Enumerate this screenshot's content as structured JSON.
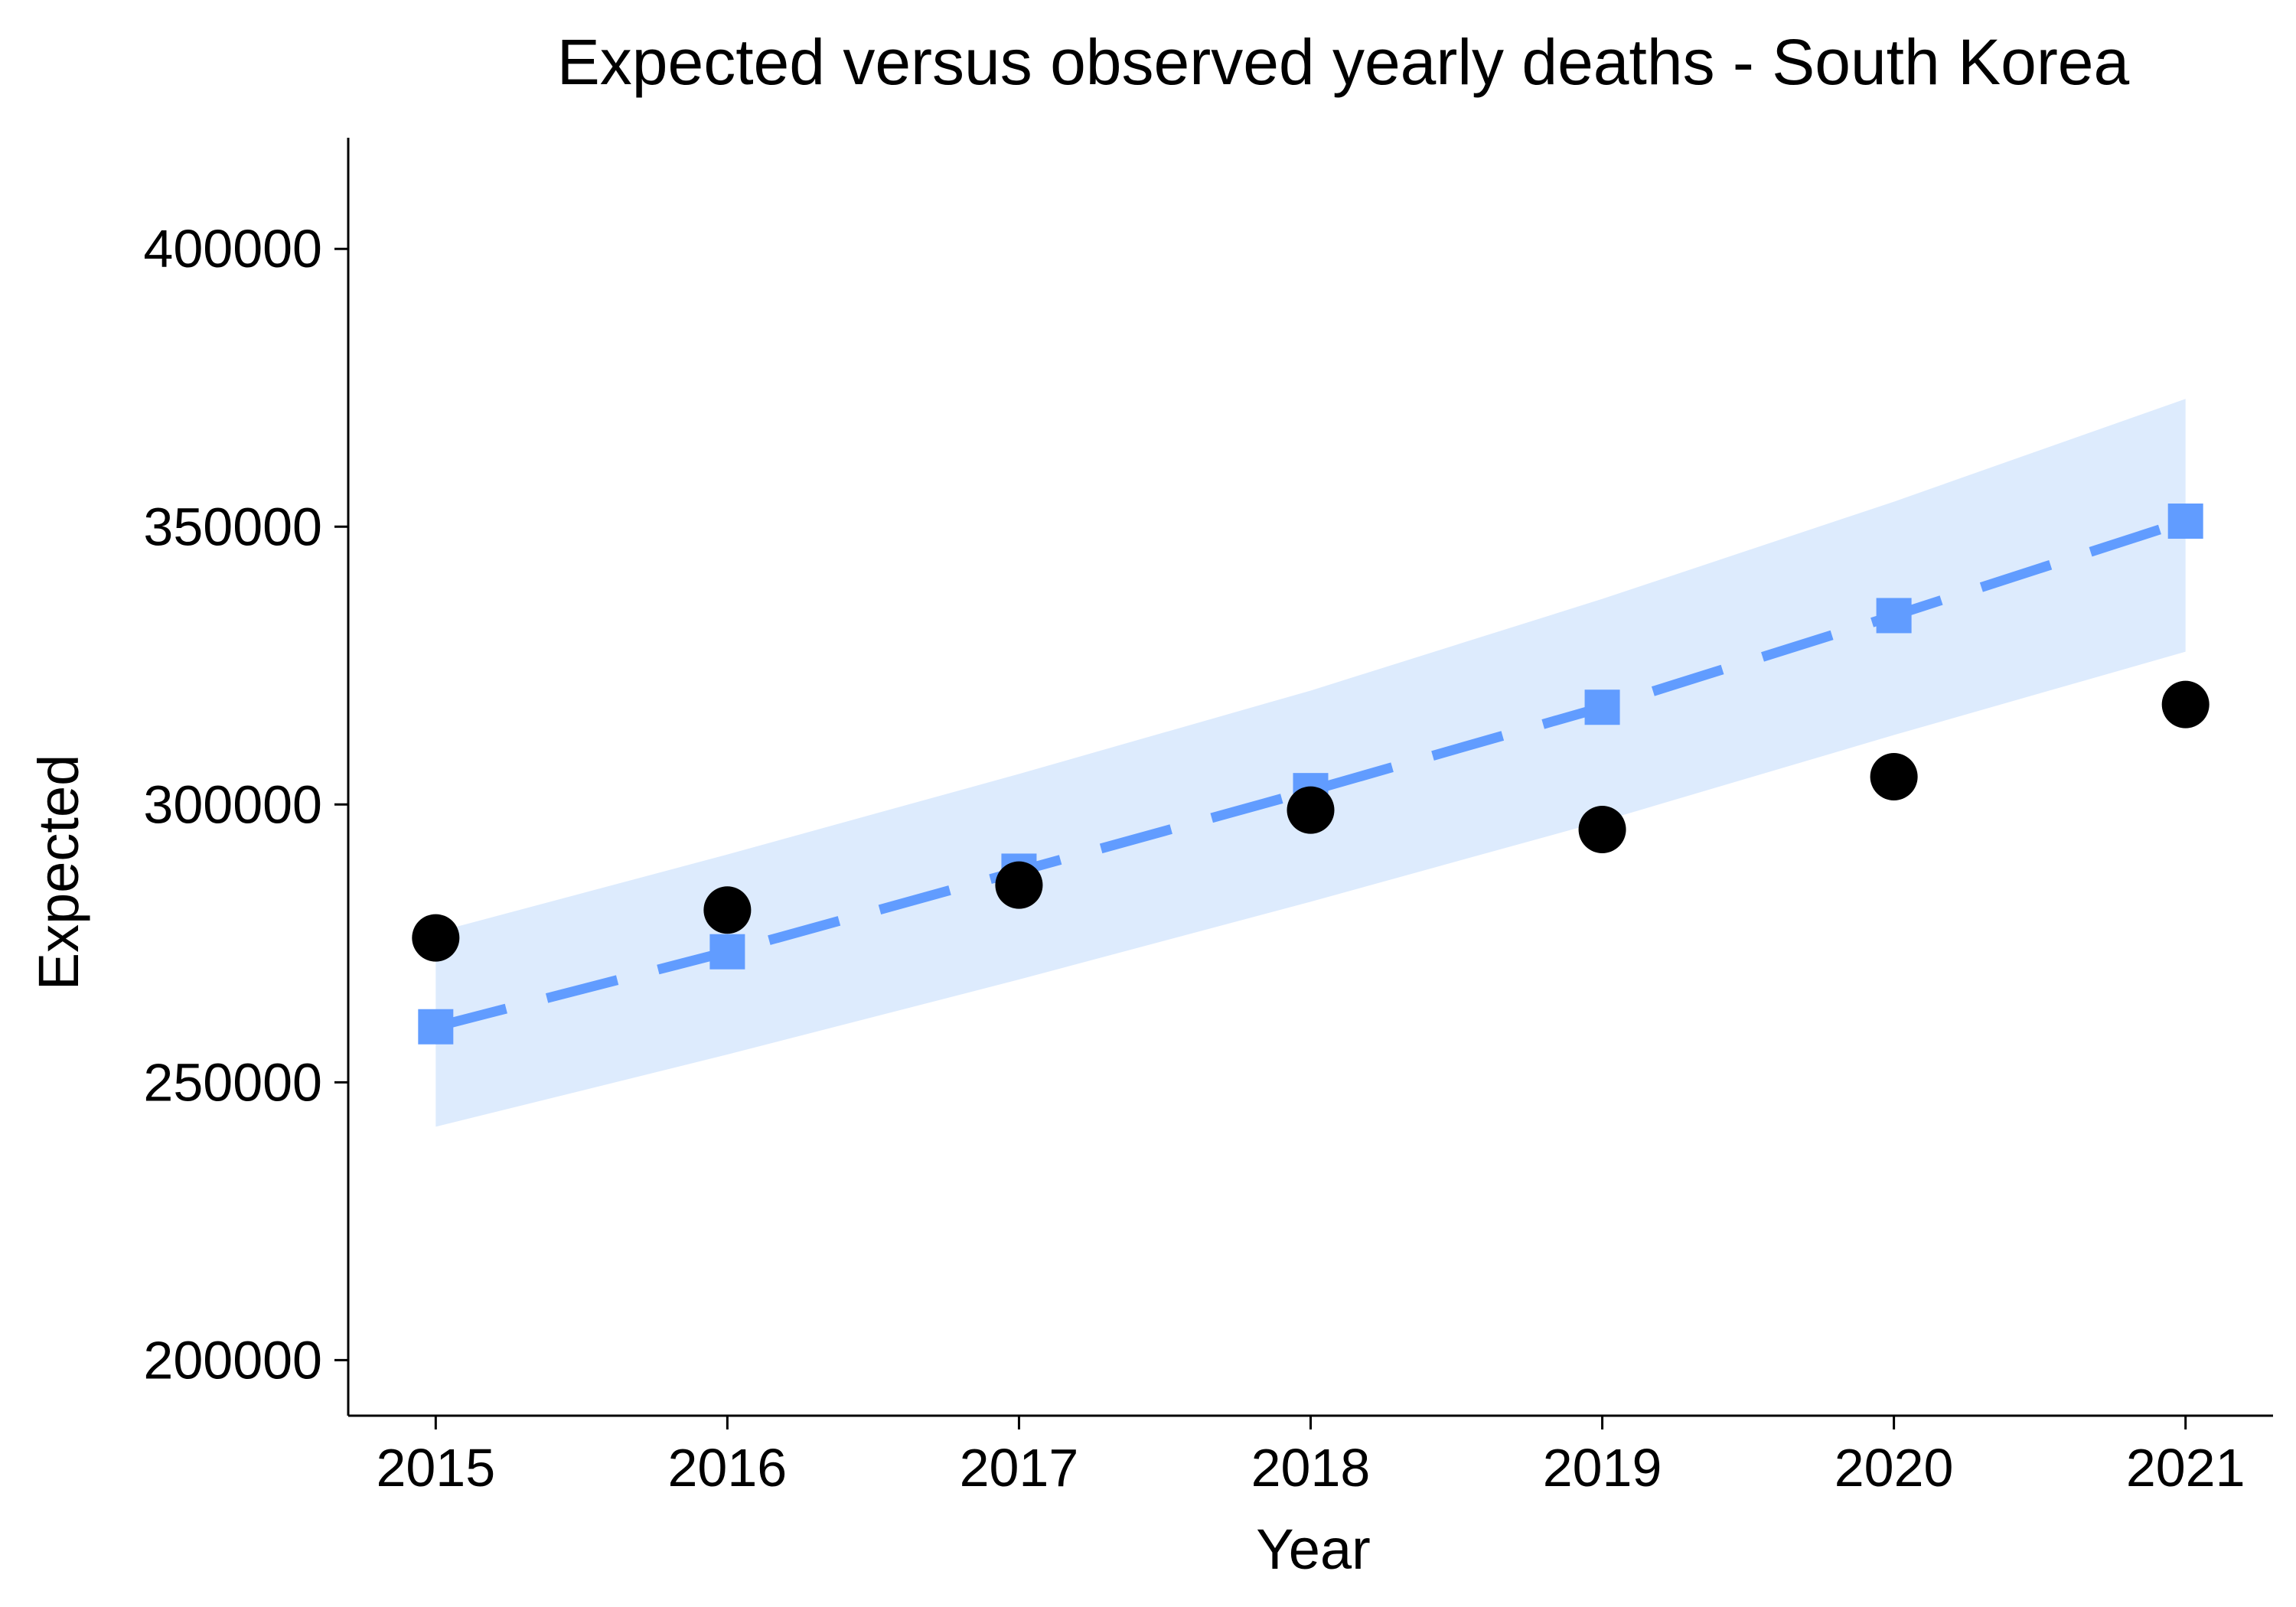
{
  "chart_data": {
    "type": "line",
    "title": "Expected versus observed yearly deaths - South Korea",
    "xlabel": "Year",
    "ylabel": "Expected",
    "x": [
      2015,
      2016,
      2017,
      2018,
      2019,
      2020,
      2021
    ],
    "xlim": [
      2014.7,
      2021.3
    ],
    "ylim": [
      190000,
      420000
    ],
    "yticks": [
      200000,
      250000,
      300000,
      350000,
      400000
    ],
    "grid": false,
    "expected": {
      "values": [
        260000,
        273500,
        288000,
        302500,
        317500,
        334000,
        351000
      ],
      "color": "#619CFF",
      "marker": "square",
      "line": "dashed"
    },
    "interval": {
      "lower": [
        242000,
        255000,
        268500,
        282500,
        297000,
        312500,
        327500
      ],
      "upper": [
        277000,
        291000,
        305500,
        320500,
        337000,
        354500,
        373000
      ],
      "color": "#DDEBFD"
    },
    "observed": {
      "values": [
        276000,
        281000,
        285500,
        299000,
        295500,
        305000,
        318000
      ],
      "color": "#000000",
      "marker": "circle"
    }
  }
}
